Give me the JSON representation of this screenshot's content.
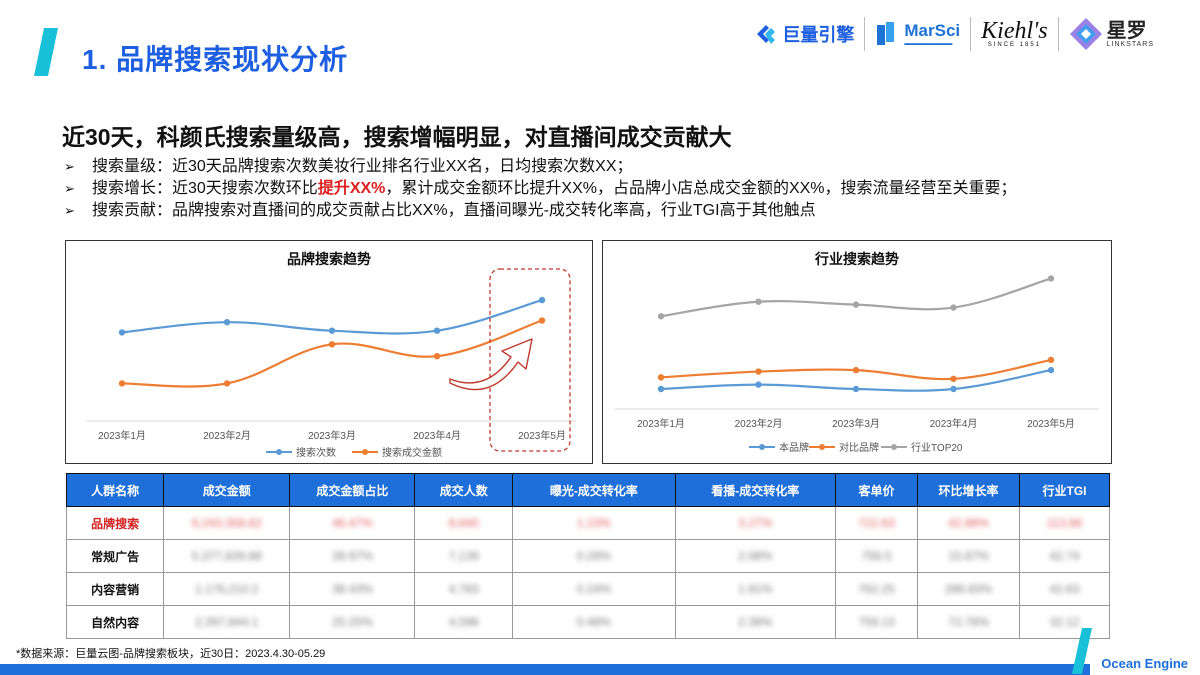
{
  "header": {
    "title": "1. 品牌搜索现状分析",
    "accent_color": "#1d5fe0",
    "bar_color": "#18c0d8"
  },
  "logos": {
    "juliang": "巨量引擎",
    "marsci": "MarSci",
    "kiehls": "Kiehl's",
    "kiehls_sub": "SINCE 1851",
    "xingluo_cn": "星罗",
    "xingluo_en": "LINKSTARS"
  },
  "headline": "近30天，科颜氏搜索量级高，搜索增幅明显，对直播间成交贡献大",
  "bullets": [
    {
      "mark": "➢",
      "text": "搜索量级：近30天品牌搜索次数美妆行业排名行业XX名，日均搜索次数XX；"
    },
    {
      "mark": "➢",
      "pre": "搜索增长：近30天搜索次数环比",
      "highlight": "提升XX%",
      "post": "，累计成交金额环比提升XX%，占品牌小店总成交金额的XX%，搜索流量经营至关重要；"
    },
    {
      "mark": "➢",
      "text": "搜索贡献：品牌搜索对直播间的成交贡献占比XX%，直播间曝光-成交转化率高，行业TGI高于其他触点"
    }
  ],
  "chart_data": [
    {
      "type": "line",
      "title": "品牌搜索趋势",
      "categories": [
        "2023年1月",
        "2023年2月",
        "2023年3月",
        "2023年4月",
        "2023年5月"
      ],
      "series": [
        {
          "name": "搜索次数",
          "color": "#5b9bd5",
          "values": [
            58,
            64,
            59,
            59,
            77
          ]
        },
        {
          "name": "搜索成交金额",
          "color": "#ed7d31",
          "values": [
            28,
            28,
            51,
            44,
            65
          ]
        }
      ],
      "ylim": [
        0,
        100
      ],
      "grid": false,
      "legend": "bottom",
      "highlight_category": "2023年5月"
    },
    {
      "type": "line",
      "title": "行业搜索趋势",
      "categories": [
        "2023年1月",
        "2023年2月",
        "2023年3月",
        "2023年4月",
        "2023年5月"
      ],
      "series": [
        {
          "name": "本品牌",
          "color": "#5b9bd5",
          "values": [
            22,
            25,
            22,
            22,
            35
          ]
        },
        {
          "name": "对比品牌",
          "color": "#ed7d31",
          "values": [
            30,
            34,
            35,
            29,
            42
          ]
        },
        {
          "name": "行业TOP20",
          "color": "#a5a5a5",
          "values": [
            72,
            82,
            80,
            78,
            98
          ]
        }
      ],
      "ylim": [
        0,
        110
      ],
      "grid": false,
      "legend": "bottom"
    }
  ],
  "table": {
    "columns": [
      "人群名称",
      "成交金额",
      "成交金额占比",
      "成交人数",
      "曝光-成交转化率",
      "看播-成交转化率",
      "客单价",
      "环比增长率",
      "行业TGI"
    ],
    "rows": [
      {
        "name": "品牌搜索",
        "hot": true,
        "cells": [
          "6,243,358.62",
          "46.47%",
          "8,640",
          "1.23%",
          "3.27%",
          "722.63",
          "42.88%",
          "113.86"
        ]
      },
      {
        "name": "常规广告",
        "hot": false,
        "cells": [
          "5,377,826.88",
          "39.97%",
          "7,139",
          "0.29%",
          "2.08%",
          "756.5",
          "15.87%",
          "42.74"
        ]
      },
      {
        "name": "内容营销",
        "hot": false,
        "cells": [
          "1,176,210.2",
          "38.43%",
          "4,783",
          "0.24%",
          "1.91%",
          "762.25",
          "286.83%",
          "42.63"
        ]
      },
      {
        "name": "自然内容",
        "hot": false,
        "cells": [
          "2,397,844.1",
          "25.25%",
          "4,596",
          "0.48%",
          "2.39%",
          "759.13",
          "72.78%",
          "32.12"
        ]
      }
    ]
  },
  "footer": {
    "source": "*数据来源：巨量云图-品牌搜索板块，近30日：2023.4.30-05.29",
    "brand": "Ocean Engine",
    "line_color": "#1e6fd9"
  }
}
